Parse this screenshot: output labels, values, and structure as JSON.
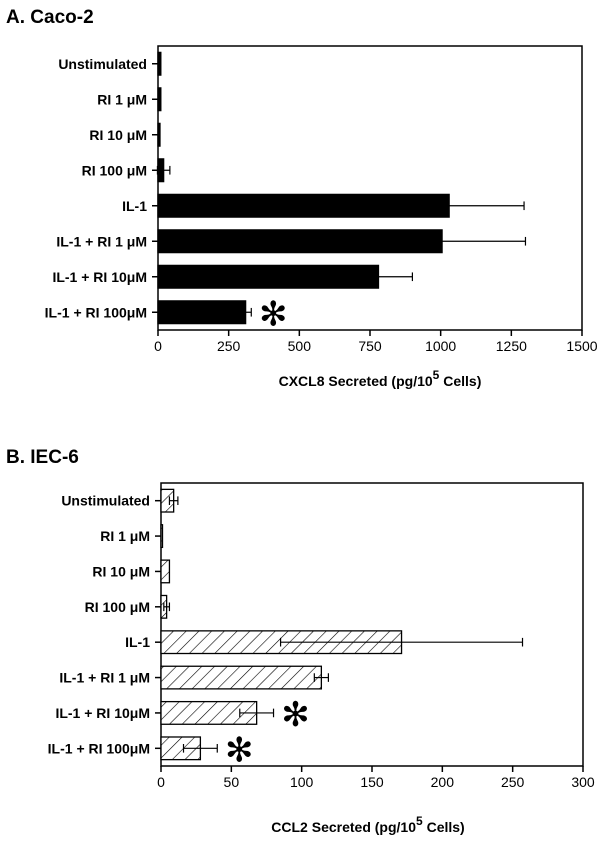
{
  "chart_data": [
    {
      "type": "bar",
      "orientation": "horizontal",
      "title": "A.  Caco-2",
      "xlabel": "CXCL8 Secreted (pg/10",
      "xlabel_sup": "5",
      "xlabel_end": " Cells)",
      "categories": [
        "Unstimulated",
        "RI 1 μM",
        "RI 10 μM",
        "RI 100 μM",
        "IL-1",
        "IL-1 + RI 1 μM",
        "IL-1 + RI 10μM",
        "IL-1 + RI 100μM"
      ],
      "values": [
        10,
        10,
        7,
        20,
        1030,
        1005,
        780,
        310
      ],
      "errors": [
        0,
        0,
        0,
        22,
        265,
        295,
        120,
        20
      ],
      "significant": [
        false,
        false,
        false,
        false,
        false,
        false,
        false,
        true
      ],
      "xlim": [
        0,
        1500
      ],
      "xticks": [
        0,
        250,
        500,
        750,
        1000,
        1250,
        1500
      ],
      "fill": "solid",
      "bar_color": "#000000",
      "star_symbol": "✻"
    },
    {
      "type": "bar",
      "orientation": "horizontal",
      "title": "B.  IEC-6",
      "xlabel": "CCL2 Secreted (pg/10",
      "xlabel_sup": "5",
      "xlabel_end": " Cells)",
      "categories": [
        "Unstimulated",
        "RI 1 μM",
        "RI 10 μM",
        "RI 100 μM",
        "IL-1",
        "IL-1 + RI 1 μM",
        "IL-1 + RI 10μM",
        "IL-1 + RI 100μM"
      ],
      "values": [
        9,
        1,
        6,
        4,
        171,
        114,
        68,
        28
      ],
      "errors": [
        3,
        0,
        0,
        2,
        86,
        5,
        12,
        12
      ],
      "significant": [
        false,
        false,
        false,
        false,
        false,
        false,
        true,
        true
      ],
      "xlim": [
        0,
        300
      ],
      "xticks": [
        0,
        50,
        100,
        150,
        200,
        250,
        300
      ],
      "fill": "hatched",
      "bar_color": "#000000",
      "star_symbol": "✻"
    }
  ]
}
